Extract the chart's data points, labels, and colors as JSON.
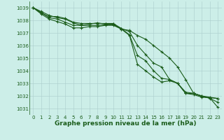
{
  "background_color": "#cceee8",
  "grid_color": "#aacccc",
  "line_color": "#1a5c1a",
  "title": "Graphe pression niveau de la mer (hPa)",
  "xlim": [
    -0.5,
    23.5
  ],
  "ylim": [
    1030.5,
    1039.5
  ],
  "yticks": [
    1031,
    1032,
    1033,
    1034,
    1035,
    1036,
    1037,
    1038,
    1039
  ],
  "xticks": [
    0,
    1,
    2,
    3,
    4,
    5,
    6,
    7,
    8,
    9,
    10,
    11,
    12,
    13,
    14,
    15,
    16,
    17,
    18,
    19,
    20,
    21,
    22,
    23
  ],
  "series": [
    [
      1039.0,
      1038.7,
      1038.4,
      1038.2,
      1038.1,
      1037.8,
      1037.6,
      1037.7,
      1037.8,
      1037.7,
      1037.7,
      1037.3,
      1037.2,
      1036.8,
      1036.5,
      1036.0,
      1035.5,
      1035.0,
      1034.3,
      1033.3,
      1032.2,
      1032.0,
      1031.8,
      1031.5
    ],
    [
      1039.0,
      1038.6,
      1038.3,
      1038.3,
      1038.15,
      1037.85,
      1037.75,
      1037.75,
      1037.75,
      1037.75,
      1037.75,
      1037.35,
      1037.1,
      1036.0,
      1035.3,
      1034.6,
      1034.3,
      1033.3,
      1033.0,
      1032.3,
      1032.2,
      1032.0,
      1031.9,
      1031.8
    ],
    [
      1039.0,
      1038.6,
      1038.2,
      1038.1,
      1037.85,
      1037.6,
      1037.6,
      1037.6,
      1037.6,
      1037.65,
      1037.65,
      1037.35,
      1036.85,
      1035.2,
      1034.8,
      1034.0,
      1033.4,
      1033.3,
      1033.0,
      1032.2,
      1032.2,
      1031.95,
      1031.85,
      1031.8
    ],
    [
      1039.0,
      1038.5,
      1038.1,
      1037.9,
      1037.7,
      1037.4,
      1037.4,
      1037.5,
      1037.5,
      1037.6,
      1037.6,
      1037.3,
      1036.8,
      1034.5,
      1034.0,
      1033.5,
      1033.1,
      1033.2,
      1033.0,
      1032.2,
      1032.1,
      1031.9,
      1031.85,
      1031.1
    ]
  ],
  "marker": "+",
  "markersize": 3.5,
  "linewidth": 0.8,
  "title_fontsize": 6.5,
  "tick_fontsize": 5.0
}
